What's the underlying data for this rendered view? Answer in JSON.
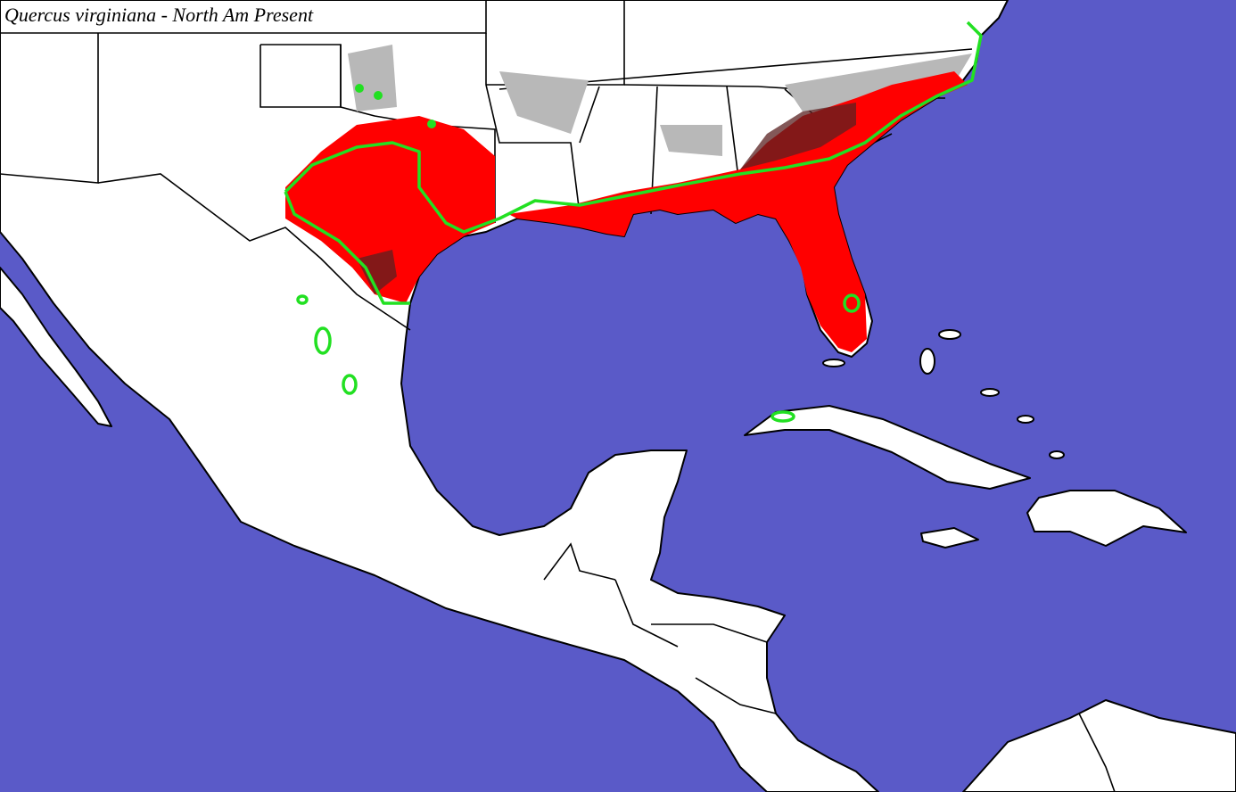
{
  "title": "Quercus virginiana - North Am Present"
}
